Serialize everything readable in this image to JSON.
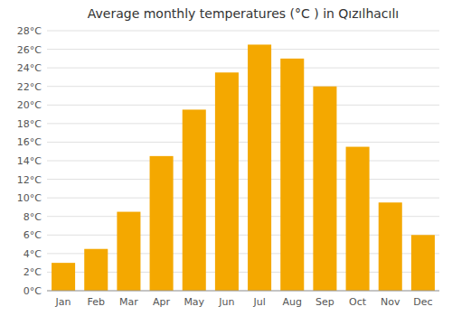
{
  "chart_data": {
    "type": "bar",
    "title": "Average monthly temperatures (°C ) in Qızılhacılı",
    "categories": [
      "Jan",
      "Feb",
      "Mar",
      "Apr",
      "May",
      "Jun",
      "Jul",
      "Aug",
      "Sep",
      "Oct",
      "Nov",
      "Dec"
    ],
    "values": [
      3.0,
      4.5,
      8.5,
      14.5,
      19.5,
      23.5,
      26.5,
      25.0,
      22.0,
      15.5,
      9.5,
      6.0
    ],
    "color": "#F4A800",
    "ylim": [
      0,
      28
    ],
    "yticks": [
      {
        "value": 0,
        "label": "0°C"
      },
      {
        "value": 2,
        "label": "2°C"
      },
      {
        "value": 4,
        "label": "4°C"
      },
      {
        "value": 6,
        "label": "6°C"
      },
      {
        "value": 8,
        "label": "8°C"
      },
      {
        "value": 10,
        "label": "10°C"
      },
      {
        "value": 12,
        "label": "12°C"
      },
      {
        "value": 14,
        "label": "14°C"
      },
      {
        "value": 16,
        "label": "16°C"
      },
      {
        "value": 18,
        "label": "18°C"
      },
      {
        "value": 20,
        "label": "20°C"
      },
      {
        "value": 22,
        "label": "22°C"
      },
      {
        "value": 24,
        "label": "24°C"
      },
      {
        "value": 26,
        "label": "26°C"
      },
      {
        "value": 28,
        "label": "28°C"
      }
    ],
    "grid": true
  }
}
